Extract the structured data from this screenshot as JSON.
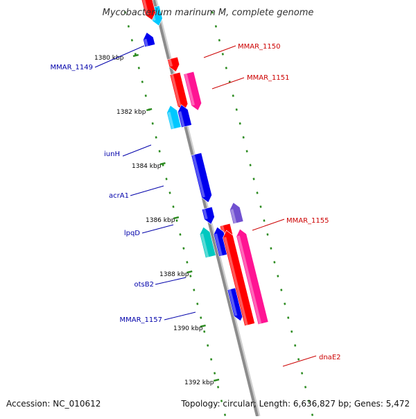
{
  "title": "Mycobacterium marinum M, complete genome",
  "footer": {
    "accession": "Accession: NC_010612",
    "topology": "Topology: circular; Length: 6,636,827 bp; Genes: 5,472"
  },
  "colors": {
    "backbone": "#8c8c8c",
    "tick": "#2a8a1e",
    "forward_label": "#cc0000",
    "reverse_label": "#0000aa",
    "red": "#ff0000",
    "pink": "#ff1493",
    "cyan": "#00c8ff",
    "blue": "#0000ee",
    "teal": "#00c8c0",
    "purple": "#7050d0"
  },
  "ticks": [
    {
      "label": "1380 kbp"
    },
    {
      "label": "1382 kbp"
    },
    {
      "label": "1384 kbp"
    },
    {
      "label": "1386 kbp"
    },
    {
      "label": "1388 kbp"
    },
    {
      "label": "1390 kbp"
    },
    {
      "label": "1392 kbp"
    }
  ],
  "labels": [
    {
      "text": "MMAR_1150",
      "side": "right"
    },
    {
      "text": "MMAR_1151",
      "side": "right"
    },
    {
      "text": "MMAR_1155",
      "side": "right"
    },
    {
      "text": "dnaE2",
      "side": "right"
    },
    {
      "text": "MMAR_1149",
      "side": "left"
    },
    {
      "text": "iunH",
      "side": "left"
    },
    {
      "text": "acrA1",
      "side": "left"
    },
    {
      "text": "lpqD",
      "side": "left"
    },
    {
      "text": "otsB2",
      "side": "left"
    },
    {
      "text": "MMAR_1157",
      "side": "left"
    }
  ]
}
